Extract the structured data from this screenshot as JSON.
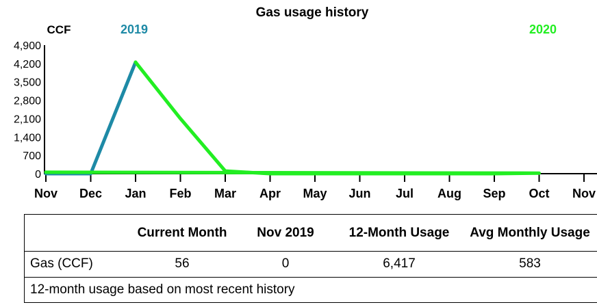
{
  "chart_data": {
    "type": "line",
    "title": "Gas usage history",
    "ylabel": "CCF",
    "year_labels": [
      {
        "text": "2019",
        "color": "#1e8aa6"
      },
      {
        "text": "2020",
        "color": "#22ee22"
      }
    ],
    "categories": [
      "Nov",
      "Dec",
      "Jan",
      "Feb",
      "Mar",
      "Apr",
      "May",
      "Jun",
      "Jul",
      "Aug",
      "Sep",
      "Oct",
      "Nov"
    ],
    "y_ticks": [
      "0",
      "700",
      "1,400",
      "2,100",
      "2,800",
      "3,500",
      "4,200",
      "4,900"
    ],
    "ylim": [
      0,
      4900
    ],
    "series": [
      {
        "color": "#1e8aa6",
        "x": [
          "Nov",
          "Dec",
          "Jan"
        ],
        "values": [
          0,
          0,
          4250
        ]
      },
      {
        "color": "#22ee22",
        "x": [
          "Jan",
          "Feb",
          "Mar",
          "Apr",
          "May",
          "Jun",
          "Jul",
          "Aug",
          "Sep",
          "Oct",
          "Nov"
        ],
        "values": [
          4250,
          2100,
          100,
          0,
          0,
          0,
          0,
          0,
          0,
          20,
          56
        ]
      }
    ]
  },
  "table": {
    "headers": [
      "",
      "Current Month",
      "Nov 2019",
      "12-Month Usage",
      "Avg Monthly Usage"
    ],
    "row": [
      "Gas (CCF)",
      "56",
      "0",
      "6,417",
      "583"
    ],
    "note": "12-month usage based on most recent history"
  }
}
